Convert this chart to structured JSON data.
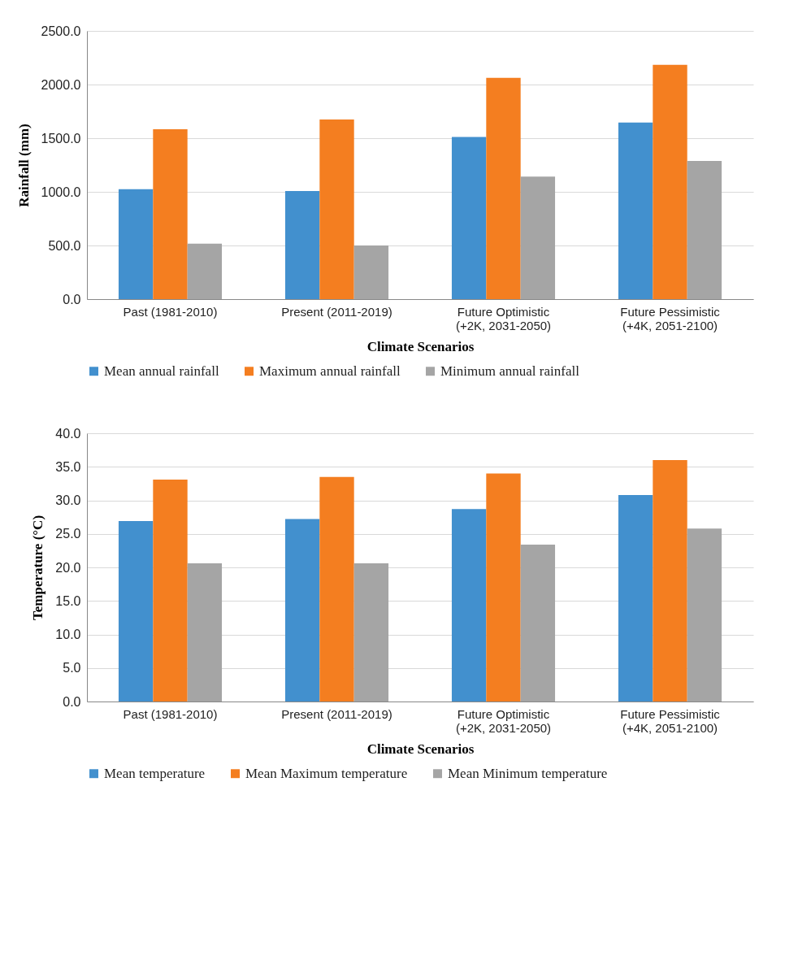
{
  "chart_data": [
    {
      "type": "bar",
      "categories": [
        "Past (1981-2010)",
        "Present (2011-2019)",
        "Future Optimistic (+2K, 2031-2050)",
        "Future Pessimistic (+4K, 2051-2100)"
      ],
      "xlabel": "Climate Scenarios",
      "ylabel": "Rainfall (mm)",
      "ylim": [
        0,
        2500
      ],
      "yticks": [
        {
          "value": 0,
          "label": "0.0"
        },
        {
          "value": 500,
          "label": "500.0"
        },
        {
          "value": 1000,
          "label": "1000.0"
        },
        {
          "value": 1500,
          "label": "1500.0"
        },
        {
          "value": 2000,
          "label": "2000.0"
        },
        {
          "value": 2500,
          "label": "2500.0"
        }
      ],
      "grid": "y",
      "legend": "bottom",
      "series": [
        {
          "name": "Mean annual rainfall",
          "color": "#4290ce",
          "values": [
            1025,
            1008,
            1512,
            1646
          ]
        },
        {
          "name": "Maximum annual rainfall",
          "color": "#f47e20",
          "values": [
            1583,
            1675,
            2062,
            2183
          ]
        },
        {
          "name": "Minimum annual rainfall",
          "color": "#a5a5a5",
          "values": [
            517,
            500,
            1142,
            1287
          ]
        }
      ]
    },
    {
      "type": "bar",
      "categories": [
        "Past (1981-2010)",
        "Present (2011-2019)",
        "Future Optimistic (+2K, 2031-2050)",
        "Future Pessimistic (+4K, 2051-2100)"
      ],
      "xlabel": "Climate Scenarios",
      "ylabel": "Temperature (°C)",
      "ylim": [
        0,
        40
      ],
      "yticks": [
        {
          "value": 0,
          "label": "0.0"
        },
        {
          "value": 5,
          "label": "5.0"
        },
        {
          "value": 10,
          "label": "10.0"
        },
        {
          "value": 15,
          "label": "15.0"
        },
        {
          "value": 20,
          "label": "20.0"
        },
        {
          "value": 25,
          "label": "25.0"
        },
        {
          "value": 30,
          "label": "30.0"
        },
        {
          "value": 35,
          "label": "35.0"
        },
        {
          "value": 40,
          "label": "40.0"
        }
      ],
      "grid": "y",
      "legend": "bottom",
      "series": [
        {
          "name": "Mean temperature",
          "color": "#4290ce",
          "values": [
            26.9,
            27.2,
            28.7,
            30.8
          ]
        },
        {
          "name": "Mean Maximum temperature",
          "color": "#f47e20",
          "values": [
            33.1,
            33.5,
            34.0,
            36.0
          ]
        },
        {
          "name": "Mean Minimum temperature",
          "color": "#a5a5a5",
          "values": [
            20.6,
            20.6,
            23.4,
            25.8
          ]
        }
      ]
    }
  ]
}
